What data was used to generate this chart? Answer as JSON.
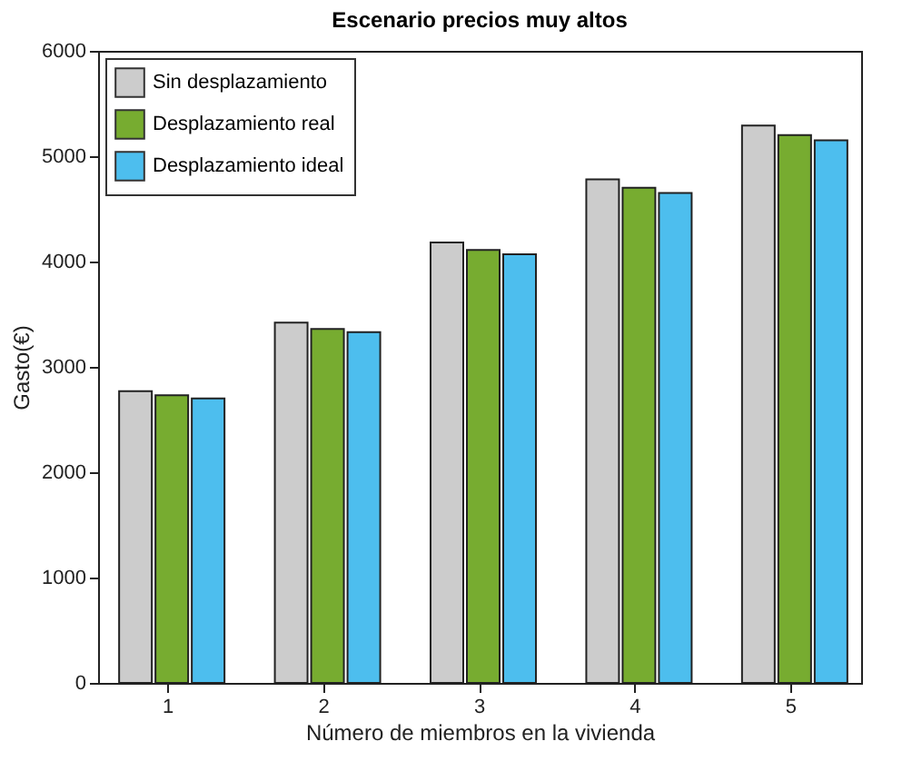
{
  "chart_data": {
    "type": "bar",
    "title": "Escenario precios muy altos",
    "xlabel": "Número de miembros en la vivienda",
    "ylabel": "Gasto(€)",
    "categories": [
      "1",
      "2",
      "3",
      "4",
      "5"
    ],
    "series": [
      {
        "name": "Sin desplazamiento",
        "color": "#cccccc",
        "values": [
          2770,
          3420,
          4180,
          4780,
          5290
        ]
      },
      {
        "name": "Desplazamiento real",
        "color": "#77ac30",
        "values": [
          2730,
          3360,
          4110,
          4700,
          5200
        ]
      },
      {
        "name": "Desplazamiento ideal",
        "color": "#4dbeee",
        "values": [
          2700,
          3330,
          4070,
          4650,
          5150
        ]
      }
    ],
    "ylim": [
      0,
      6000
    ],
    "yticks": [
      0,
      1000,
      2000,
      3000,
      4000,
      5000,
      6000
    ],
    "grid": false,
    "legend": "top left"
  }
}
